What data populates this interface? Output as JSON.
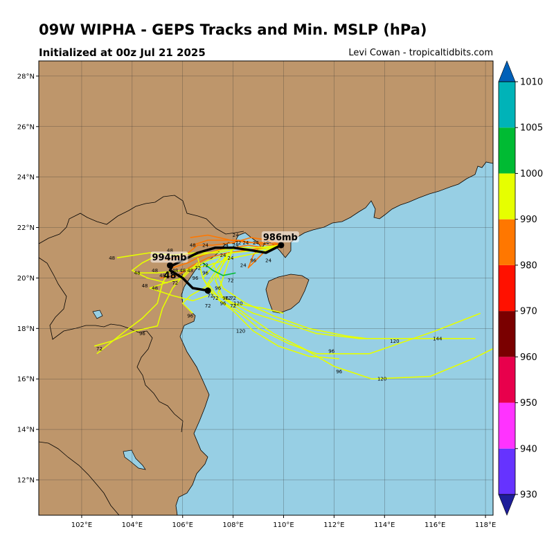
{
  "header": {
    "title": "09W WIPHA - GEPS Tracks and Min. MSLP (hPa)",
    "subtitle": "Initialized at 00z Jul 21 2025",
    "credit": "Levi Cowan - tropicaltidbits.com"
  },
  "map": {
    "lon_range": [
      100.3,
      118.3
    ],
    "lat_range": [
      10.6,
      28.6
    ],
    "lat_ticks": [
      "12°N",
      "14°N",
      "16°N",
      "18°N",
      "20°N",
      "22°N",
      "24°N",
      "26°N",
      "28°N"
    ],
    "lon_ticks": [
      "102°E",
      "104°E",
      "106°E",
      "108°E",
      "110°E",
      "112°E",
      "114°E",
      "116°E",
      "118°E"
    ],
    "land_color": "#be966b",
    "ocean_color": "#97cfe4"
  },
  "colorbar": {
    "levels": [
      "930",
      "940",
      "950",
      "960",
      "970",
      "980",
      "990",
      "1000",
      "1005",
      "1010"
    ],
    "colors": [
      "#1e1e99",
      "#6633ff",
      "#ff33ff",
      "#e8004c",
      "#7a0000",
      "#ff1100",
      "#ff7700",
      "#e6ff00",
      "#00bb33",
      "#00b3b8",
      "#0060b8"
    ]
  },
  "tracks": {
    "ensemble": [
      {
        "color": "#ff7700",
        "points": [
          [
            109.9,
            21.3
          ],
          [
            109.2,
            21.2
          ],
          [
            108.6,
            21.3
          ],
          [
            108.0,
            21.2
          ],
          [
            107.4,
            21.1
          ],
          [
            106.8,
            20.9
          ],
          [
            106.2,
            20.6
          ],
          [
            105.6,
            20.4
          ]
        ]
      },
      {
        "color": "#ff7700",
        "points": [
          [
            109.9,
            21.3
          ],
          [
            109.4,
            21.5
          ],
          [
            108.7,
            21.6
          ],
          [
            108.0,
            21.4
          ],
          [
            107.2,
            21.3
          ],
          [
            106.6,
            21.3
          ],
          [
            106.1,
            20.9
          ],
          [
            105.3,
            20.7
          ]
        ]
      },
      {
        "color": "#ff7700",
        "points": [
          [
            109.9,
            21.3
          ],
          [
            109.3,
            21.4
          ],
          [
            108.6,
            21.4
          ],
          [
            107.9,
            21.5
          ],
          [
            107.0,
            21.7
          ],
          [
            106.3,
            21.6
          ]
        ]
      },
      {
        "color": "#ff7700",
        "points": [
          [
            109.9,
            21.3
          ],
          [
            109.2,
            21.0
          ],
          [
            108.6,
            20.4
          ],
          [
            108.8,
            20.9
          ],
          [
            109.1,
            21.3
          ]
        ]
      },
      {
        "color": "#ff7700",
        "points": [
          [
            109.9,
            21.3
          ],
          [
            109.3,
            21.2
          ],
          [
            108.5,
            21.1
          ],
          [
            107.8,
            21.0
          ],
          [
            107.0,
            20.8
          ],
          [
            106.4,
            20.5
          ],
          [
            105.8,
            20.1
          ],
          [
            105.1,
            20.0
          ]
        ]
      },
      {
        "color": "#ff7700",
        "points": [
          [
            109.9,
            21.3
          ],
          [
            109.4,
            21.3
          ],
          [
            108.8,
            21.4
          ],
          [
            108.2,
            21.5
          ],
          [
            107.6,
            21.5
          ],
          [
            107.0,
            21.5
          ],
          [
            106.4,
            21.3
          ]
        ]
      },
      {
        "color": "#e6ff00",
        "points": [
          [
            109.9,
            21.3
          ],
          [
            109.2,
            21.2
          ],
          [
            108.3,
            21.2
          ],
          [
            107.4,
            21.0
          ],
          [
            106.5,
            21.0
          ],
          [
            105.6,
            20.9
          ],
          [
            104.7,
            21.0
          ],
          [
            103.4,
            20.8
          ]
        ]
      },
      {
        "color": "#e6ff00",
        "points": [
          [
            109.9,
            21.3
          ],
          [
            109.0,
            21.0
          ],
          [
            108.0,
            20.8
          ],
          [
            107.0,
            20.5
          ],
          [
            106.0,
            20.3
          ],
          [
            105.0,
            20.2
          ],
          [
            104.1,
            20.2
          ]
        ]
      },
      {
        "color": "#e6ff00",
        "points": [
          [
            109.9,
            21.3
          ],
          [
            109.0,
            21.1
          ],
          [
            108.0,
            21.0
          ],
          [
            107.0,
            20.7
          ],
          [
            106.2,
            20.3
          ],
          [
            105.6,
            19.6
          ],
          [
            105.2,
            18.8
          ],
          [
            105.0,
            18.1
          ],
          [
            104.1,
            17.9
          ],
          [
            103.2,
            17.5
          ],
          [
            102.5,
            17.3
          ]
        ]
      },
      {
        "color": "#e6ff00",
        "points": [
          [
            109.9,
            21.3
          ],
          [
            109.0,
            21.2
          ],
          [
            108.0,
            21.2
          ],
          [
            107.1,
            21.0
          ],
          [
            106.2,
            20.8
          ],
          [
            105.6,
            20.5
          ],
          [
            105.2,
            19.8
          ],
          [
            105.0,
            19.0
          ],
          [
            104.4,
            18.4
          ],
          [
            103.6,
            17.8
          ],
          [
            102.6,
            17.0
          ]
        ]
      },
      {
        "color": "#e6ff00",
        "points": [
          [
            108.0,
            21.2
          ],
          [
            107.4,
            20.2
          ],
          [
            107.0,
            19.7
          ],
          [
            106.3,
            19.3
          ],
          [
            106.0,
            19.0
          ],
          [
            106.4,
            18.6
          ]
        ]
      },
      {
        "color": "#e6ff00",
        "points": [
          [
            108.0,
            21.2
          ],
          [
            107.6,
            20.0
          ],
          [
            107.4,
            19.4
          ],
          [
            108.0,
            19.0
          ],
          [
            108.8,
            18.6
          ],
          [
            110.1,
            18.2
          ],
          [
            111.3,
            17.8
          ],
          [
            113.0,
            17.6
          ],
          [
            115.5,
            17.6
          ],
          [
            117.6,
            17.6
          ]
        ]
      },
      {
        "color": "#e6ff00",
        "points": [
          [
            107.8,
            21.0
          ],
          [
            107.3,
            19.9
          ],
          [
            107.6,
            19.2
          ],
          [
            108.6,
            18.5
          ],
          [
            109.6,
            17.8
          ],
          [
            110.8,
            17.2
          ],
          [
            112.0,
            16.5
          ],
          [
            113.5,
            16.0
          ],
          [
            115.8,
            16.1
          ],
          [
            117.5,
            16.8
          ],
          [
            118.3,
            17.2
          ]
        ]
      },
      {
        "color": "#e6ff00",
        "points": [
          [
            107.8,
            21.0
          ],
          [
            107.0,
            19.8
          ],
          [
            107.5,
            19.1
          ],
          [
            108.3,
            18.6
          ],
          [
            109.0,
            18.0
          ],
          [
            110.2,
            17.4
          ],
          [
            111.3,
            17.0
          ],
          [
            113.4,
            17.0
          ],
          [
            116.0,
            17.9
          ],
          [
            117.8,
            18.6
          ]
        ]
      },
      {
        "color": "#e6ff00",
        "points": [
          [
            107.5,
            20.8
          ],
          [
            106.8,
            20.0
          ],
          [
            107.2,
            19.3
          ],
          [
            108.0,
            18.7
          ],
          [
            108.8,
            17.9
          ],
          [
            109.8,
            17.3
          ],
          [
            111.0,
            16.9
          ],
          [
            112.2,
            16.8
          ]
        ]
      },
      {
        "color": "#e6ff00",
        "points": [
          [
            107.2,
            20.6
          ],
          [
            107.6,
            19.6
          ],
          [
            108.5,
            19.0
          ],
          [
            109.6,
            18.5
          ],
          [
            111.0,
            18.0
          ],
          [
            112.5,
            17.7
          ],
          [
            113.3,
            17.6
          ]
        ]
      },
      {
        "color": "#e6ff00",
        "points": [
          [
            106.6,
            20.8
          ],
          [
            106.8,
            20.0
          ],
          [
            107.2,
            19.4
          ],
          [
            108.0,
            19.0
          ],
          [
            109.2,
            18.8
          ],
          [
            110.0,
            18.6
          ]
        ]
      },
      {
        "color": "#e6ff00",
        "points": [
          [
            105.0,
            20.9
          ],
          [
            104.4,
            20.6
          ],
          [
            104.0,
            20.3
          ],
          [
            104.6,
            20.0
          ],
          [
            105.4,
            19.8
          ]
        ]
      },
      {
        "color": "#e6ff00",
        "points": [
          [
            106.6,
            20.6
          ],
          [
            106.0,
            20.0
          ],
          [
            105.3,
            19.8
          ],
          [
            104.7,
            19.6
          ],
          [
            105.6,
            19.3
          ],
          [
            106.4,
            19.1
          ],
          [
            107.0,
            19.3
          ]
        ]
      },
      {
        "color": "#00bb33",
        "points": [
          [
            106.8,
            20.6
          ],
          [
            107.2,
            20.3
          ],
          [
            107.6,
            20.1
          ],
          [
            108.1,
            20.2
          ]
        ]
      }
    ],
    "mean": {
      "color": "#000000",
      "points": [
        [
          109.9,
          21.3
        ],
        [
          109.3,
          21.0
        ],
        [
          108.7,
          21.1
        ],
        [
          108.0,
          21.2
        ],
        [
          107.3,
          21.2
        ],
        [
          106.6,
          21.0
        ],
        [
          106.0,
          20.7
        ],
        [
          105.6,
          20.5
        ],
        [
          105.5,
          20.3
        ],
        [
          106.0,
          20.0
        ],
        [
          106.4,
          19.6
        ],
        [
          107.0,
          19.5
        ]
      ]
    }
  },
  "hour_labels": [
    {
      "text": "24",
      "lon": 108.1,
      "lat": 21.7
    },
    {
      "text": "24",
      "lon": 106.9,
      "lat": 21.3
    },
    {
      "text": "48",
      "lon": 106.4,
      "lat": 21.3
    },
    {
      "text": "48",
      "lon": 105.5,
      "lat": 21.1
    },
    {
      "text": "48",
      "lon": 103.2,
      "lat": 20.8
    },
    {
      "text": "24",
      "lon": 107.7,
      "lat": 21.3
    },
    {
      "text": "24",
      "lon": 108.1,
      "lat": 21.3
    },
    {
      "text": "24",
      "lon": 108.9,
      "lat": 21.4
    },
    {
      "text": "24",
      "lon": 109.3,
      "lat": 21.4
    },
    {
      "text": "24",
      "lon": 108.5,
      "lat": 21.4
    },
    {
      "text": "72",
      "lon": 108.2,
      "lat": 21.4
    },
    {
      "text": "24",
      "lon": 107.6,
      "lat": 20.9
    },
    {
      "text": "24",
      "lon": 107.9,
      "lat": 20.8
    },
    {
      "text": "24",
      "lon": 108.4,
      "lat": 20.5
    },
    {
      "text": "96",
      "lon": 108.8,
      "lat": 20.7
    },
    {
      "text": "24",
      "lon": 109.4,
      "lat": 20.7
    },
    {
      "text": "48",
      "lon": 104.9,
      "lat": 20.3
    },
    {
      "text": "48",
      "lon": 104.2,
      "lat": 20.2
    },
    {
      "text": "48",
      "lon": 105.7,
      "lat": 20.3
    },
    {
      "text": "48",
      "lon": 106.0,
      "lat": 20.3
    },
    {
      "text": "72",
      "lon": 106.6,
      "lat": 20.4
    },
    {
      "text": "72",
      "lon": 106.9,
      "lat": 20.5
    },
    {
      "text": "48",
      "lon": 106.3,
      "lat": 20.3
    },
    {
      "text": "96",
      "lon": 106.9,
      "lat": 20.2
    },
    {
      "text": "72",
      "lon": 105.9,
      "lat": 20.1
    },
    {
      "text": "96",
      "lon": 106.5,
      "lat": 20.0
    },
    {
      "text": "48",
      "lon": 105.2,
      "lat": 20.1
    },
    {
      "text": "48",
      "lon": 104.5,
      "lat": 19.7
    },
    {
      "text": "48",
      "lon": 104.9,
      "lat": 19.6
    },
    {
      "text": "72",
      "lon": 105.7,
      "lat": 19.8
    },
    {
      "text": "72",
      "lon": 107.9,
      "lat": 19.9
    },
    {
      "text": "96",
      "lon": 107.4,
      "lat": 19.6
    },
    {
      "text": "96",
      "lon": 107.7,
      "lat": 19.2
    },
    {
      "text": "72",
      "lon": 107.1,
      "lat": 19.3
    },
    {
      "text": "72",
      "lon": 107.3,
      "lat": 19.2
    },
    {
      "text": "72",
      "lon": 107.8,
      "lat": 19.2
    },
    {
      "text": "72",
      "lon": 108.0,
      "lat": 19.2
    },
    {
      "text": "96",
      "lon": 107.6,
      "lat": 19.0
    },
    {
      "text": "72",
      "lon": 107.0,
      "lat": 18.9
    },
    {
      "text": "72",
      "lon": 108.0,
      "lat": 18.9
    },
    {
      "text": "120",
      "lon": 108.2,
      "lat": 19.0
    },
    {
      "text": "96",
      "lon": 106.3,
      "lat": 18.5
    },
    {
      "text": "120",
      "lon": 108.3,
      "lat": 17.9
    },
    {
      "text": "96",
      "lon": 104.4,
      "lat": 17.8
    },
    {
      "text": "72",
      "lon": 102.7,
      "lat": 17.2
    },
    {
      "text": "96",
      "lon": 111.9,
      "lat": 17.1
    },
    {
      "text": "96",
      "lon": 112.2,
      "lat": 16.3
    },
    {
      "text": "120",
      "lon": 114.4,
      "lat": 17.5
    },
    {
      "text": "144",
      "lon": 116.1,
      "lat": 17.6
    },
    {
      "text": "120",
      "lon": 113.9,
      "lat": 16.0
    }
  ],
  "annotations": [
    {
      "text": "986mb",
      "lon": 109.9,
      "lat": 21.3
    },
    {
      "text": "994mb",
      "lon": 105.5,
      "lat": 20.5
    },
    {
      "text": "48",
      "lon": 105.5,
      "lat": 20.5
    }
  ]
}
